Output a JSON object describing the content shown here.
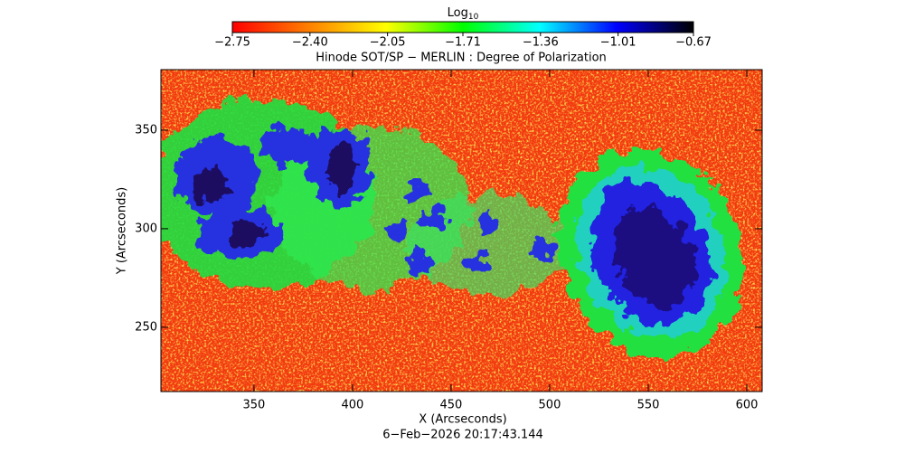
{
  "chart_data": {
    "type": "image",
    "title": "Hinode SOT/SP − MERLIN : Degree of Polarization",
    "x_label": "X (Arcseconds)",
    "y_label": "Y (Arcseconds)",
    "timestamp": "6−Feb−2026 20:17:43.144",
    "xlim": [
      302.8,
      607.8
    ],
    "ylim": [
      217.4,
      380.7
    ],
    "xticks": [
      350,
      400,
      450,
      500,
      550,
      600
    ],
    "yticks": [
      250,
      300,
      350
    ],
    "colorbar": {
      "label": "Log",
      "label_sub": "10",
      "lim": [
        -2.75,
        -0.67
      ],
      "ticks": [
        {
          "value": -2.75,
          "label": "−2.75"
        },
        {
          "value": -2.4,
          "label": "−2.40"
        },
        {
          "value": -2.05,
          "label": "−2.05"
        },
        {
          "value": -1.71,
          "label": "−1.71"
        },
        {
          "value": -1.36,
          "label": "−1.36"
        },
        {
          "value": -1.01,
          "label": "−1.01"
        },
        {
          "value": -0.67,
          "label": "−0.67"
        }
      ],
      "colormap": [
        "#ff0000",
        "#ff8000",
        "#ffff00",
        "#00ff00",
        "#00ffff",
        "#0000ff",
        "#000000"
      ]
    }
  }
}
